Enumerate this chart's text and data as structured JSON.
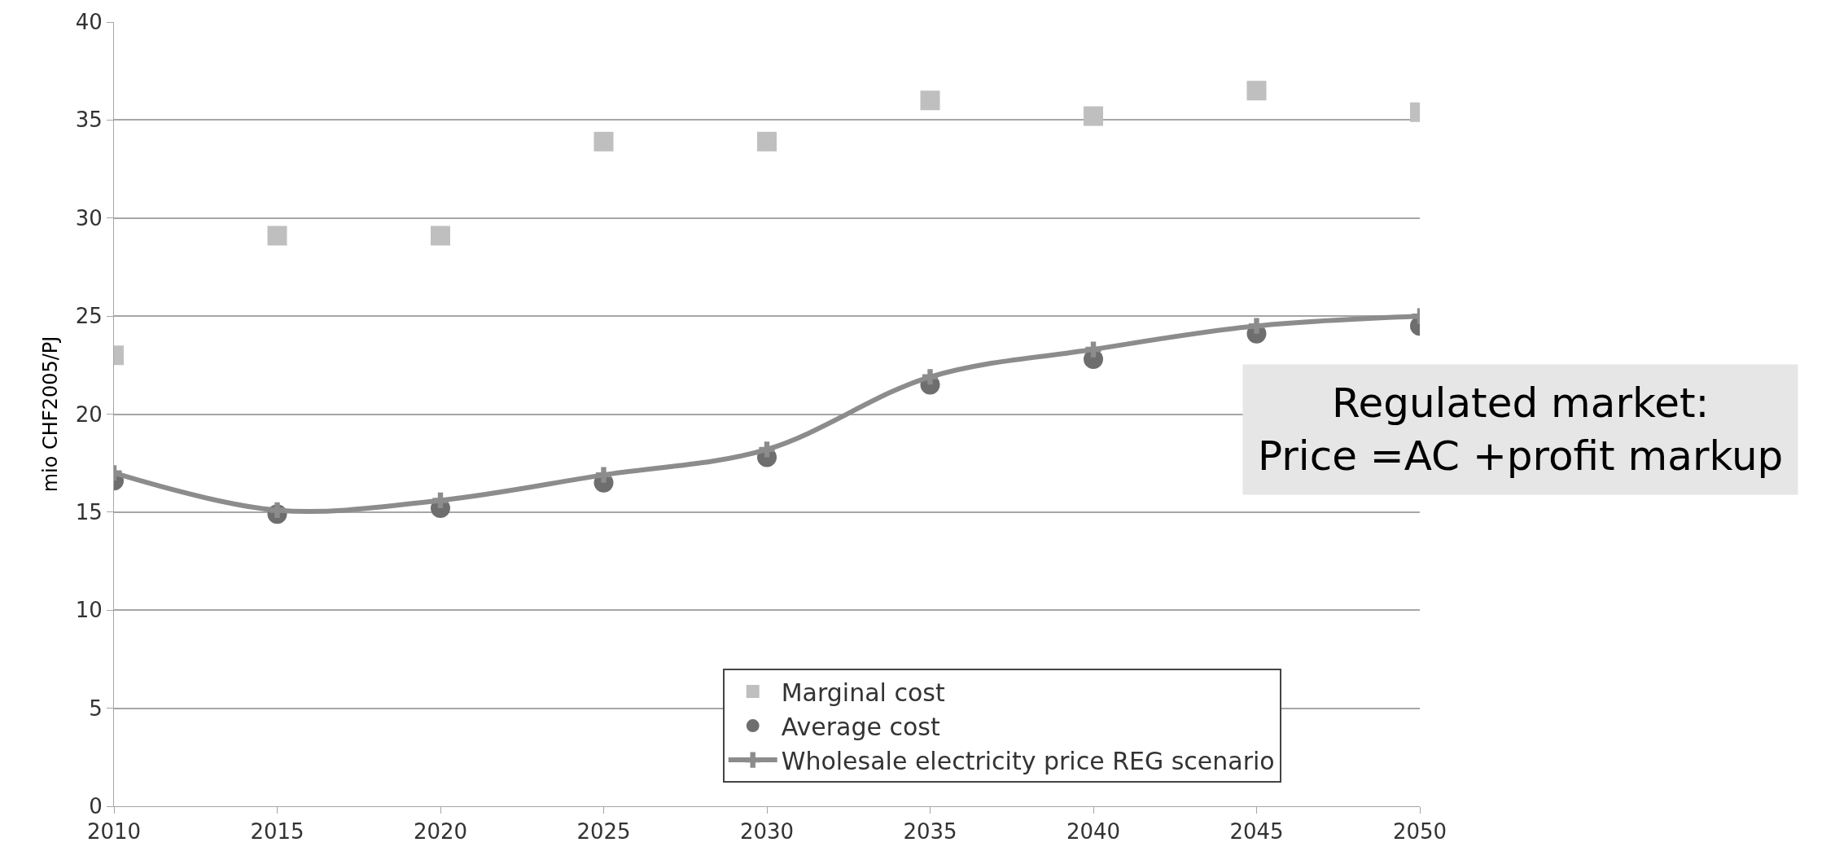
{
  "chart_data": {
    "type": "line",
    "ylabel": "mio CHF2005/PJ",
    "x": [
      2010,
      2015,
      2020,
      2025,
      2030,
      2035,
      2040,
      2045,
      2050
    ],
    "series": [
      {
        "name": "Marginal cost",
        "type": "scatter",
        "marker": "square",
        "color": "#bfbfbf",
        "values": [
          23.0,
          29.1,
          29.1,
          33.9,
          33.9,
          36.0,
          35.2,
          36.5,
          35.4
        ]
      },
      {
        "name": "Average cost",
        "type": "scatter",
        "marker": "circle",
        "color": "#6e6e6e",
        "values": [
          16.6,
          14.9,
          15.2,
          16.5,
          17.8,
          21.5,
          22.8,
          24.1,
          24.5
        ]
      },
      {
        "name": "Wholesale electricity price REG scenario",
        "marker": "cross",
        "color": "#8c8c8c",
        "values": [
          17.0,
          15.1,
          15.6,
          16.9,
          18.2,
          21.9,
          23.3,
          24.5,
          25.0
        ]
      }
    ],
    "xlim": [
      2010,
      2050
    ],
    "xticks": [
      2010,
      2015,
      2020,
      2025,
      2030,
      2035,
      2040,
      2045,
      2050
    ],
    "ylim": [
      0,
      40
    ],
    "yticks": [
      0,
      5,
      10,
      15,
      20,
      25,
      30,
      35,
      40
    ],
    "grid": "y",
    "legend": "bottom",
    "annotations": [
      "Regulated market:\nPrice =AC +profit markup"
    ]
  }
}
